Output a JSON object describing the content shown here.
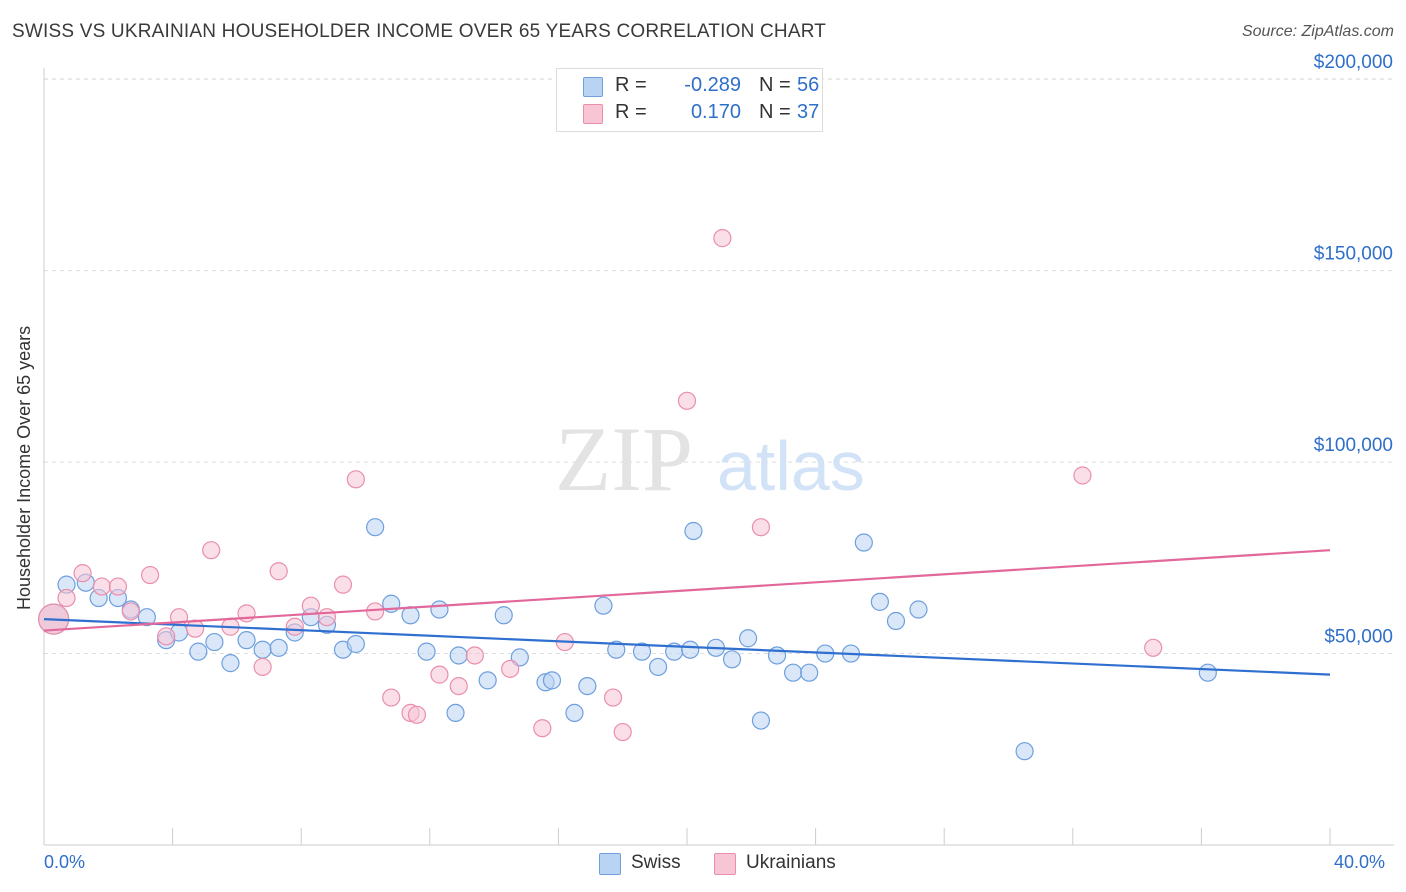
{
  "title": "SWISS VS UKRAINIAN HOUSEHOLDER INCOME OVER 65 YEARS CORRELATION CHART",
  "source": "Source: ZipAtlas.com",
  "watermark": {
    "zip": "ZIP",
    "atlas": "atlas"
  },
  "legend": {
    "rows": [
      {
        "r_label": "R =",
        "r_value": "-0.289",
        "n_label": "N =",
        "n_value": "56"
      },
      {
        "r_label": "R =",
        "r_value": "0.170",
        "n_label": "N =",
        "n_value": "37"
      }
    ]
  },
  "bottom_legend": {
    "swiss": "Swiss",
    "ukrainians": "Ukrainians"
  },
  "x_axis": {
    "min_label": "0.0%",
    "max_label": "40.0%"
  },
  "colors": {
    "swiss_fill": "#b9d3f3",
    "swiss_stroke": "#6e9fde",
    "swiss_line": "#2f6fd0",
    "ukr_fill": "#f8c5d5",
    "ukr_stroke": "#ea8fab",
    "ukr_line": "#e2679a",
    "tick_label": "#2f6fc9",
    "grid": "#dddddd"
  },
  "chart_data": {
    "type": "scatter",
    "title": "SWISS VS UKRAINIAN HOUSEHOLDER INCOME OVER 65 YEARS CORRELATION CHART",
    "xlabel": "",
    "ylabel": "Householder Income Over 65 years",
    "xlim": [
      0,
      40
    ],
    "ylim": [
      0,
      205000
    ],
    "x_unit": "%",
    "y_ticks": [
      50000,
      100000,
      150000,
      200000
    ],
    "y_tick_labels": [
      "$50,000",
      "$100,000",
      "$150,000",
      "$200,000"
    ],
    "x_tick_labels": [
      "0.0%",
      "40.0%"
    ],
    "grid": true,
    "series": [
      {
        "name": "Swiss",
        "r": -0.289,
        "n": 56,
        "trend": [
          [
            0,
            59000
          ],
          [
            40,
            44500
          ]
        ],
        "points": [
          [
            0.3,
            59000
          ],
          [
            0.7,
            68000
          ],
          [
            1.3,
            68500
          ],
          [
            1.7,
            64500
          ],
          [
            2.3,
            64500
          ],
          [
            2.7,
            61500
          ],
          [
            3.2,
            59500
          ],
          [
            3.8,
            53500
          ],
          [
            4.2,
            55500
          ],
          [
            4.8,
            50500
          ],
          [
            5.3,
            53000
          ],
          [
            5.8,
            47500
          ],
          [
            6.3,
            53500
          ],
          [
            6.8,
            51000
          ],
          [
            7.3,
            51500
          ],
          [
            7.8,
            55500
          ],
          [
            8.3,
            59500
          ],
          [
            8.8,
            57500
          ],
          [
            9.3,
            51000
          ],
          [
            9.7,
            52500
          ],
          [
            10.3,
            83000
          ],
          [
            10.8,
            63000
          ],
          [
            11.4,
            60000
          ],
          [
            11.9,
            50500
          ],
          [
            12.3,
            61500
          ],
          [
            12.8,
            34500
          ],
          [
            12.9,
            49500
          ],
          [
            13.8,
            43000
          ],
          [
            14.3,
            60000
          ],
          [
            14.8,
            49000
          ],
          [
            15.6,
            42500
          ],
          [
            15.8,
            43000
          ],
          [
            16.5,
            34500
          ],
          [
            16.9,
            41500
          ],
          [
            17.4,
            62500
          ],
          [
            17.8,
            51000
          ],
          [
            18.6,
            50500
          ],
          [
            19.1,
            46500
          ],
          [
            19.6,
            50500
          ],
          [
            20.1,
            51000
          ],
          [
            20.2,
            82000
          ],
          [
            20.9,
            51500
          ],
          [
            21.4,
            48500
          ],
          [
            21.9,
            54000
          ],
          [
            22.3,
            32500
          ],
          [
            22.8,
            49500
          ],
          [
            23.3,
            45000
          ],
          [
            23.8,
            45000
          ],
          [
            24.3,
            50000
          ],
          [
            25.1,
            50000
          ],
          [
            25.5,
            79000
          ],
          [
            26.0,
            63500
          ],
          [
            26.5,
            58500
          ],
          [
            27.2,
            61500
          ],
          [
            30.5,
            24500
          ],
          [
            36.2,
            45000
          ]
        ]
      },
      {
        "name": "Ukrainians",
        "r": 0.17,
        "n": 37,
        "trend": [
          [
            0,
            56000
          ],
          [
            40,
            77000
          ]
        ],
        "points": [
          [
            0.3,
            59000
          ],
          [
            0.7,
            64500
          ],
          [
            1.2,
            71000
          ],
          [
            1.8,
            67500
          ],
          [
            2.3,
            67500
          ],
          [
            2.7,
            61000
          ],
          [
            3.3,
            70500
          ],
          [
            3.8,
            54500
          ],
          [
            4.2,
            59500
          ],
          [
            4.7,
            56500
          ],
          [
            5.2,
            77000
          ],
          [
            5.8,
            57000
          ],
          [
            6.3,
            60500
          ],
          [
            6.8,
            46500
          ],
          [
            7.3,
            71500
          ],
          [
            7.8,
            57000
          ],
          [
            8.3,
            62500
          ],
          [
            8.8,
            59500
          ],
          [
            9.3,
            68000
          ],
          [
            9.7,
            95500
          ],
          [
            10.3,
            61000
          ],
          [
            10.8,
            38500
          ],
          [
            11.4,
            34500
          ],
          [
            11.6,
            34000
          ],
          [
            12.3,
            44500
          ],
          [
            12.9,
            41500
          ],
          [
            13.4,
            49500
          ],
          [
            14.5,
            46000
          ],
          [
            15.5,
            30500
          ],
          [
            16.2,
            53000
          ],
          [
            17.7,
            38500
          ],
          [
            18.0,
            29500
          ],
          [
            20.0,
            116000
          ],
          [
            21.1,
            158500
          ],
          [
            22.3,
            83000
          ],
          [
            32.3,
            96500
          ],
          [
            34.5,
            51500
          ]
        ]
      }
    ]
  }
}
